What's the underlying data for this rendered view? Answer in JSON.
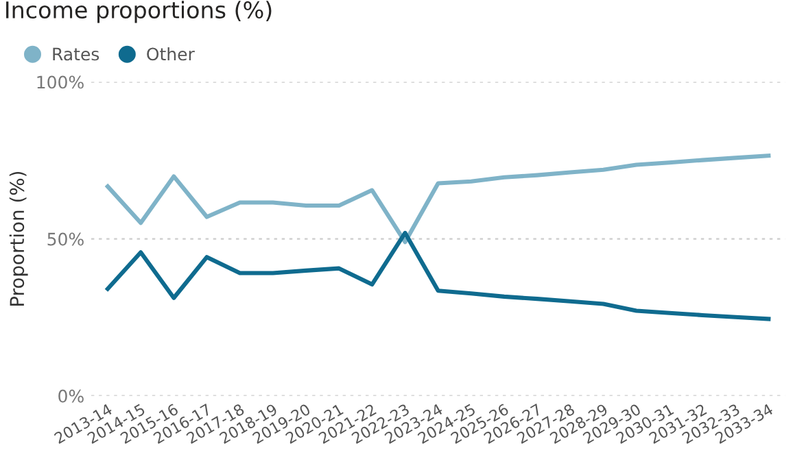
{
  "chart_data": {
    "type": "line",
    "title": "Income proportions (%)",
    "ylabel": "Proportion (%)",
    "categories": [
      "2013-14",
      "2014-15",
      "2015-16",
      "2016-17",
      "2017-18",
      "2018-19",
      "2019-20",
      "2020-21",
      "2021-22",
      "2022-23",
      "2023-24",
      "2024-25",
      "2025-26",
      "2026-27",
      "2027-28",
      "2028-29",
      "2029-30",
      "2030-31",
      "2031-32",
      "2032-33",
      "2033-34"
    ],
    "series": [
      {
        "name": "Rates",
        "color": "#7fb3c8",
        "values": [
          66.7,
          55.1,
          69.9,
          57.0,
          61.6,
          61.6,
          60.6,
          60.6,
          65.5,
          49.0,
          67.7,
          68.3,
          69.6,
          70.3,
          71.2,
          72.0,
          73.6,
          74.3,
          75.1,
          75.8,
          76.5
        ]
      },
      {
        "name": "Other",
        "color": "#0f6b8f",
        "values": [
          34.1,
          45.7,
          31.2,
          44.2,
          39.1,
          39.1,
          39.9,
          40.6,
          35.5,
          51.9,
          33.5,
          32.6,
          31.6,
          30.9,
          30.1,
          29.3,
          27.1,
          26.4,
          25.7,
          25.1,
          24.5
        ]
      }
    ],
    "ylim": [
      0,
      100
    ],
    "yticks": [
      {
        "value": 0,
        "label": "0%"
      },
      {
        "value": 50,
        "label": "50%"
      },
      {
        "value": 100,
        "label": "100%"
      }
    ],
    "grid": "y",
    "legend": "top left",
    "marker": "none",
    "line_style": "solid"
  }
}
